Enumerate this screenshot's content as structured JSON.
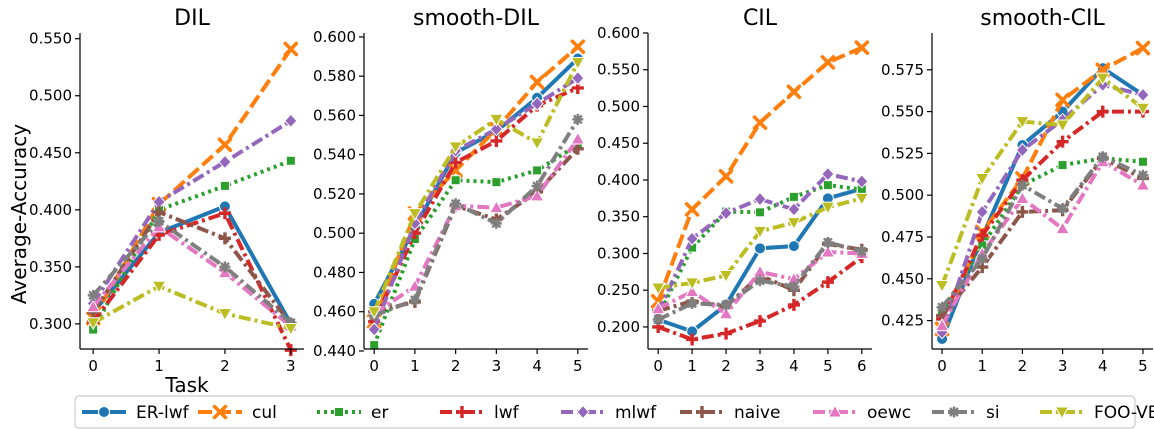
{
  "figure": {
    "ylabel": "Average-Accuracy",
    "xlabel": "Task"
  },
  "chart_data": [
    {
      "type": "line",
      "title": "DIL",
      "x": [
        0,
        1,
        2,
        3
      ],
      "xlim": [
        -0.2,
        3.2
      ],
      "ylim": [
        0.278,
        0.555
      ],
      "yticks": [
        0.3,
        0.35,
        0.4,
        0.45,
        0.5,
        0.55
      ],
      "series": [
        {
          "name": "ER-lwf",
          "values": [
            0.31,
            0.38,
            0.403,
            0.3
          ]
        },
        {
          "name": "cul",
          "values": [
            0.305,
            0.405,
            0.457,
            0.541
          ]
        },
        {
          "name": "er",
          "values": [
            0.295,
            0.4,
            0.421,
            0.443
          ]
        },
        {
          "name": "lwf",
          "values": [
            0.302,
            0.378,
            0.397,
            0.277
          ]
        },
        {
          "name": "mlwf",
          "values": [
            0.318,
            0.407,
            0.442,
            0.478
          ]
        },
        {
          "name": "naive",
          "values": [
            0.31,
            0.398,
            0.375,
            0.3
          ]
        },
        {
          "name": "oewc",
          "values": [
            0.315,
            0.385,
            0.345,
            0.298
          ]
        },
        {
          "name": "si",
          "values": [
            0.325,
            0.39,
            0.35,
            0.301
          ]
        },
        {
          "name": "FOO-VB",
          "values": [
            0.301,
            0.333,
            0.309,
            0.296
          ]
        }
      ]
    },
    {
      "type": "line",
      "title": "smooth-DIL",
      "x": [
        0,
        1,
        2,
        3,
        4,
        5
      ],
      "xlim": [
        -0.25,
        5.25
      ],
      "ylim": [
        0.441,
        0.602
      ],
      "yticks": [
        0.44,
        0.46,
        0.48,
        0.5,
        0.52,
        0.54,
        0.56,
        0.58,
        0.6
      ],
      "series": [
        {
          "name": "ER-lwf",
          "values": [
            0.464,
            0.503,
            0.541,
            0.552,
            0.569,
            0.589
          ]
        },
        {
          "name": "cul",
          "values": [
            0.455,
            0.51,
            0.532,
            0.553,
            0.577,
            0.595
          ]
        },
        {
          "name": "er",
          "values": [
            0.443,
            0.497,
            0.527,
            0.526,
            0.532,
            0.545
          ]
        },
        {
          "name": "lwf",
          "values": [
            0.455,
            0.5,
            0.536,
            0.547,
            0.565,
            0.574
          ]
        },
        {
          "name": "mlwf",
          "values": [
            0.451,
            0.505,
            0.542,
            0.553,
            0.566,
            0.579
          ]
        },
        {
          "name": "naive",
          "values": [
            0.46,
            0.465,
            0.514,
            0.507,
            0.521,
            0.543
          ]
        },
        {
          "name": "oewc",
          "values": [
            0.459,
            0.473,
            0.514,
            0.513,
            0.519,
            0.548
          ]
        },
        {
          "name": "si",
          "values": [
            0.458,
            0.466,
            0.515,
            0.505,
            0.524,
            0.558
          ]
        },
        {
          "name": "FOO-VB",
          "values": [
            0.46,
            0.51,
            0.544,
            0.558,
            0.546,
            0.587
          ]
        }
      ]
    },
    {
      "type": "line",
      "title": "CIL",
      "x": [
        0,
        1,
        2,
        3,
        4,
        5,
        6
      ],
      "xlim": [
        -0.3,
        6.3
      ],
      "ylim": [
        0.17,
        0.6
      ],
      "yticks": [
        0.2,
        0.25,
        0.3,
        0.35,
        0.4,
        0.45,
        0.5,
        0.55,
        0.6
      ],
      "series": [
        {
          "name": "ER-lwf",
          "values": [
            0.21,
            0.194,
            0.23,
            0.307,
            0.31,
            0.375,
            0.388
          ]
        },
        {
          "name": "cul",
          "values": [
            0.235,
            0.36,
            0.405,
            0.478,
            0.52,
            0.56,
            0.58
          ]
        },
        {
          "name": "er",
          "values": [
            0.215,
            0.308,
            0.357,
            0.356,
            0.377,
            0.393,
            0.387
          ]
        },
        {
          "name": "lwf",
          "values": [
            0.2,
            0.183,
            0.191,
            0.208,
            0.23,
            0.261,
            0.295
          ]
        },
        {
          "name": "mlwf",
          "values": [
            0.22,
            0.32,
            0.355,
            0.374,
            0.36,
            0.408,
            0.398
          ]
        },
        {
          "name": "naive",
          "values": [
            0.222,
            0.235,
            0.228,
            0.27,
            0.25,
            0.313,
            0.305
          ]
        },
        {
          "name": "oewc",
          "values": [
            0.225,
            0.248,
            0.218,
            0.275,
            0.265,
            0.302,
            0.3
          ]
        },
        {
          "name": "si",
          "values": [
            0.21,
            0.232,
            0.23,
            0.263,
            0.255,
            0.315,
            0.303
          ]
        },
        {
          "name": "FOO-VB",
          "values": [
            0.253,
            0.26,
            0.27,
            0.33,
            0.342,
            0.363,
            0.375
          ]
        }
      ]
    },
    {
      "type": "line",
      "title": "smooth-CIL",
      "x": [
        0,
        1,
        2,
        3,
        4,
        5
      ],
      "xlim": [
        -0.25,
        5.25
      ],
      "ylim": [
        0.408,
        0.597
      ],
      "yticks": [
        0.425,
        0.45,
        0.475,
        0.5,
        0.525,
        0.55,
        0.575
      ],
      "series": [
        {
          "name": "ER-lwf",
          "values": [
            0.414,
            0.475,
            0.53,
            0.55,
            0.576,
            0.56
          ]
        },
        {
          "name": "cul",
          "values": [
            0.42,
            0.478,
            0.51,
            0.557,
            0.575,
            0.588
          ]
        },
        {
          "name": "er",
          "values": [
            0.43,
            0.47,
            0.506,
            0.518,
            0.522,
            0.52
          ]
        },
        {
          "name": "lwf",
          "values": [
            0.426,
            0.476,
            0.509,
            0.532,
            0.55,
            0.55
          ]
        },
        {
          "name": "mlwf",
          "values": [
            0.418,
            0.49,
            0.527,
            0.545,
            0.566,
            0.56
          ]
        },
        {
          "name": "naive",
          "values": [
            0.428,
            0.457,
            0.49,
            0.491,
            0.522,
            0.51
          ]
        },
        {
          "name": "oewc",
          "values": [
            0.422,
            0.465,
            0.498,
            0.48,
            0.52,
            0.506
          ]
        },
        {
          "name": "si",
          "values": [
            0.433,
            0.462,
            0.506,
            0.492,
            0.523,
            0.512
          ]
        },
        {
          "name": "FOO-VB",
          "values": [
            0.446,
            0.51,
            0.544,
            0.542,
            0.57,
            0.552
          ]
        }
      ]
    }
  ],
  "legend": {
    "placement": "bottom",
    "items": [
      {
        "name": "ER-lwf",
        "color": "#1f77b4",
        "dash": "solid",
        "marker": "circle"
      },
      {
        "name": "cul",
        "color": "#ff7f0e",
        "dash": "dashed",
        "marker": "x"
      },
      {
        "name": "er",
        "color": "#2ca02c",
        "dash": "dotted",
        "marker": "square"
      },
      {
        "name": "lwf",
        "color": "#d62728",
        "dash": "dashdot",
        "marker": "plus"
      },
      {
        "name": "mlwf",
        "color": "#9467bd",
        "dash": "dashdot",
        "marker": "diamond"
      },
      {
        "name": "naive",
        "color": "#8c564b",
        "dash": "dashdot",
        "marker": "plus"
      },
      {
        "name": "oewc",
        "color": "#e377c2",
        "dash": "dashdot",
        "marker": "triangle"
      },
      {
        "name": "si",
        "color": "#7f7f7f",
        "dash": "dashdot",
        "marker": "star"
      },
      {
        "name": "FOO-VB",
        "color": "#bcbd22",
        "dash": "dashdot",
        "marker": "triangle-down"
      }
    ]
  }
}
